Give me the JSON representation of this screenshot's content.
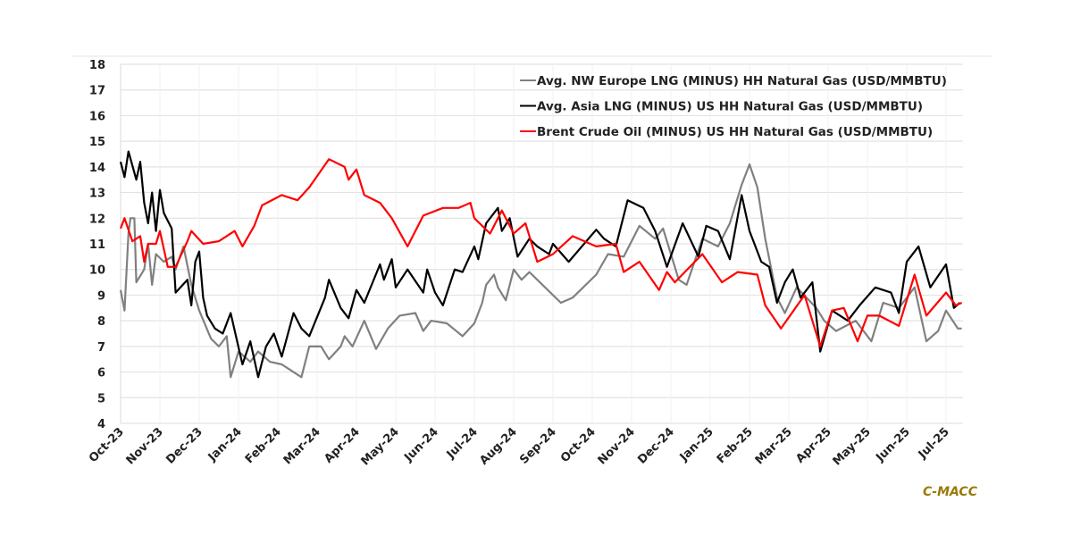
{
  "chart_data": {
    "type": "line",
    "title": "",
    "xlabel": "",
    "ylabel": "",
    "ylim": [
      4,
      18
    ],
    "yticks": [
      4,
      5,
      6,
      7,
      8,
      9,
      10,
      11,
      12,
      13,
      14,
      15,
      16,
      17,
      18
    ],
    "x_unit": "months since Oct-23",
    "xlim": [
      0,
      21.4
    ],
    "xtick_labels": [
      "Oct-23",
      "Nov-23",
      "Dec-23",
      "Jan-24",
      "Feb-24",
      "Mar-24",
      "Apr-24",
      "May-24",
      "Jun-24",
      "Jul-24",
      "Aug-24",
      "Sep-24",
      "Oct-24",
      "Nov-24",
      "Dec-24",
      "Jan-25",
      "Feb-25",
      "Mar-25",
      "Apr-25",
      "May-25",
      "Jun-25",
      "Jul-25"
    ],
    "grid": true,
    "legend_position": "top-right",
    "series": [
      {
        "name": "Avg. NW Europe LNG (MINUS) HH Natural Gas (USD/MMBTU)",
        "color": "#808080",
        "x": [
          0,
          0.1,
          0.2,
          0.25,
          0.35,
          0.4,
          0.6,
          0.7,
          0.8,
          0.9,
          1.1,
          1.3,
          1.4,
          1.6,
          1.8,
          2.0,
          2.3,
          2.5,
          2.7,
          2.8,
          3.0,
          3.3,
          3.5,
          3.8,
          4.1,
          4.4,
          4.6,
          4.8,
          5.1,
          5.3,
          5.6,
          5.7,
          5.9,
          6.2,
          6.5,
          6.8,
          7.1,
          7.5,
          7.7,
          7.9,
          8.3,
          8.7,
          9.0,
          9.2,
          9.3,
          9.5,
          9.6,
          9.8,
          10.0,
          10.2,
          10.4,
          10.6,
          11.2,
          11.5,
          12.1,
          12.4,
          12.8,
          13.2,
          13.6,
          13.8,
          14.2,
          14.4,
          14.8,
          15.2,
          15.5,
          15.8,
          16.0,
          16.2,
          16.4,
          16.7,
          16.9,
          17.2,
          17.7,
          17.9,
          18.2,
          18.7,
          19.1,
          19.4,
          19.8,
          20.2,
          20.5,
          20.8,
          21.0,
          21.3,
          21.4
        ],
        "values": [
          9.2,
          8.4,
          11.4,
          12.0,
          12.0,
          9.5,
          10.0,
          11.0,
          9.4,
          10.6,
          10.3,
          10.5,
          10.0,
          10.9,
          9.4,
          8.4,
          7.3,
          7.0,
          7.4,
          5.8,
          6.8,
          6.4,
          6.8,
          6.4,
          6.3,
          6.0,
          5.8,
          7.0,
          7.0,
          6.5,
          7.0,
          7.4,
          7.0,
          8.0,
          6.9,
          7.7,
          8.2,
          8.3,
          7.6,
          8.0,
          7.9,
          7.4,
          7.9,
          8.7,
          9.4,
          9.8,
          9.3,
          8.8,
          10.0,
          9.6,
          9.9,
          9.6,
          8.7,
          8.9,
          9.8,
          10.6,
          10.5,
          11.7,
          11.2,
          11.6,
          9.6,
          9.4,
          11.2,
          10.9,
          11.8,
          13.3,
          14.1,
          13.2,
          11.2,
          8.9,
          8.3,
          9.3,
          8.5,
          8.0,
          7.6,
          8.0,
          7.2,
          8.7,
          8.5,
          9.3,
          7.2,
          7.6,
          8.4,
          7.7,
          7.7
        ]
      },
      {
        "name": "Avg. Asia LNG (MINUS) US HH Natural Gas (USD/MMBTU)",
        "color": "#000000",
        "x": [
          0,
          0.1,
          0.2,
          0.4,
          0.5,
          0.6,
          0.7,
          0.8,
          0.9,
          1.0,
          1.1,
          1.3,
          1.4,
          1.7,
          1.8,
          1.9,
          2.0,
          2.1,
          2.2,
          2.4,
          2.6,
          2.8,
          3.1,
          3.3,
          3.5,
          3.7,
          3.9,
          4.1,
          4.4,
          4.6,
          4.8,
          5.2,
          5.3,
          5.6,
          5.8,
          6.0,
          6.2,
          6.6,
          6.7,
          6.9,
          7.0,
          7.3,
          7.7,
          7.8,
          8.0,
          8.2,
          8.5,
          8.7,
          9.0,
          9.1,
          9.3,
          9.6,
          9.7,
          9.9,
          10.1,
          10.4,
          10.6,
          10.9,
          11.0,
          11.4,
          12.1,
          12.3,
          12.6,
          12.9,
          13.3,
          13.6,
          13.9,
          14.3,
          14.7,
          14.9,
          15.2,
          15.5,
          15.8,
          16.0,
          16.3,
          16.5,
          16.7,
          16.9,
          17.1,
          17.3,
          17.6,
          17.8,
          18.1,
          18.5,
          18.8,
          19.2,
          19.6,
          19.8,
          20.0,
          20.3,
          20.6,
          21.0,
          21.2,
          21.35
        ],
        "values": [
          14.2,
          13.6,
          14.6,
          13.5,
          14.2,
          12.6,
          11.8,
          13.0,
          11.5,
          13.1,
          12.2,
          11.6,
          9.1,
          9.6,
          8.6,
          10.3,
          10.7,
          8.9,
          8.2,
          7.7,
          7.5,
          8.3,
          6.3,
          7.2,
          5.8,
          7.0,
          7.5,
          6.6,
          8.3,
          7.7,
          7.4,
          8.9,
          9.6,
          8.5,
          8.1,
          9.2,
          8.7,
          10.2,
          9.6,
          10.4,
          9.3,
          10.0,
          9.1,
          10.0,
          9.1,
          8.6,
          10.0,
          9.9,
          10.9,
          10.4,
          11.8,
          12.4,
          11.5,
          12.0,
          10.5,
          11.2,
          10.9,
          10.6,
          11.0,
          10.3,
          11.55,
          11.2,
          10.9,
          12.7,
          12.4,
          11.5,
          10.1,
          11.8,
          10.5,
          11.7,
          11.5,
          10.4,
          12.9,
          11.5,
          10.3,
          10.1,
          8.7,
          9.5,
          10.0,
          8.9,
          9.5,
          6.8,
          8.4,
          8.0,
          8.6,
          9.3,
          9.1,
          8.3,
          10.3,
          10.9,
          9.3,
          10.2,
          8.5,
          8.7
        ]
      },
      {
        "name": "Brent Crude Oil (MINUS) US HH Natural Gas (USD/MMBTU)",
        "color": "#ff0000",
        "x": [
          0,
          0.1,
          0.3,
          0.5,
          0.6,
          0.7,
          0.9,
          1.0,
          1.2,
          1.4,
          1.7,
          1.8,
          2.1,
          2.5,
          2.9,
          3.1,
          3.4,
          3.6,
          4.1,
          4.5,
          4.8,
          5.3,
          5.7,
          5.8,
          6.0,
          6.2,
          6.6,
          6.9,
          7.3,
          7.7,
          8.2,
          8.6,
          8.9,
          9.0,
          9.4,
          9.7,
          10.0,
          10.3,
          10.6,
          11.0,
          11.5,
          12.1,
          12.6,
          12.8,
          13.2,
          13.7,
          13.9,
          14.1,
          14.8,
          15.3,
          15.7,
          16.2,
          16.4,
          16.8,
          17.4,
          17.8,
          18.1,
          18.4,
          18.75,
          19.0,
          19.3,
          19.8,
          20.2,
          20.5,
          21.0,
          21.25,
          21.4
        ],
        "values": [
          11.6,
          12.0,
          11.1,
          11.3,
          10.3,
          11.0,
          11.0,
          11.5,
          10.1,
          10.1,
          11.1,
          11.5,
          11.0,
          11.1,
          11.5,
          10.9,
          11.7,
          12.5,
          12.9,
          12.7,
          13.2,
          14.3,
          14.0,
          13.5,
          13.9,
          12.9,
          12.6,
          12.0,
          10.9,
          12.1,
          12.4,
          12.4,
          12.6,
          12.0,
          11.4,
          12.3,
          11.4,
          11.8,
          10.3,
          10.6,
          11.3,
          10.9,
          11.0,
          9.9,
          10.3,
          9.2,
          9.9,
          9.5,
          10.6,
          9.5,
          9.9,
          9.8,
          8.6,
          7.7,
          9.0,
          7.0,
          8.4,
          8.5,
          7.2,
          8.2,
          8.2,
          7.8,
          9.8,
          8.2,
          9.1,
          8.6,
          8.7
        ]
      }
    ]
  },
  "brand": "C-MACC"
}
